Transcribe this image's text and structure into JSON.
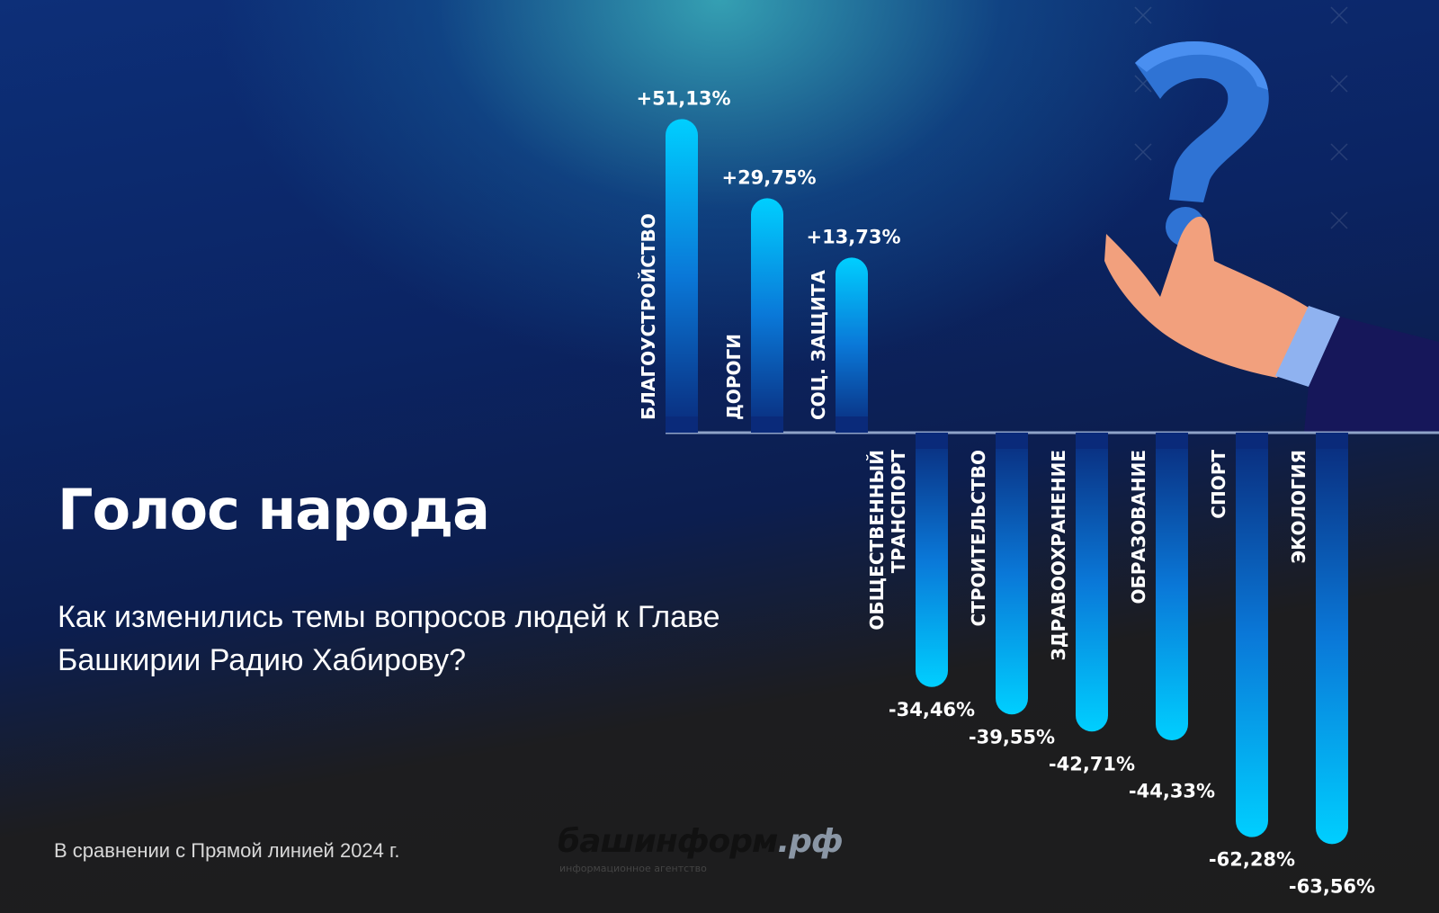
{
  "header": {
    "title": "Голос народа",
    "subtitle": "Как изменились темы вопросов людей к Главе Башкирии Радию Хабирову?",
    "note": "В сравнении с Прямой линией 2024 г."
  },
  "watermark": {
    "name": "башинформ",
    "domain": ".рф",
    "tagline": "информационное агентство"
  },
  "colors": {
    "bar_bright": "#00c8ff",
    "bar_dark": "#0a2a7a",
    "axis": "#8fa3c8",
    "accent_question": "#2f73d4"
  },
  "chart_data": {
    "type": "bar",
    "orientation": "vertical",
    "categories": [
      "БЛАГОУСТРОЙСТВО",
      "ДОРОГИ",
      "СОЦ. ЗАЩИТА",
      "ОБЩЕСТВЕННЫЙ ТРАНСПОРТ",
      "СТРОИТЕЛЬСТВО",
      "ЗДРАВООХРАНЕНИЕ",
      "ОБРАЗОВАНИЕ",
      "СПОРТ",
      "ЭКОЛОГИЯ"
    ],
    "values": [
      51.13,
      29.75,
      13.73,
      -34.46,
      -39.55,
      -42.71,
      -44.33,
      -62.28,
      -63.56
    ],
    "labels": [
      "+51,13%",
      "+29,75%",
      "+13,73%",
      "-34,46%",
      "-39,55%",
      "-42,71%",
      "-44,33%",
      "-62,28%",
      "-63,56%"
    ],
    "unit": "%",
    "grid": false,
    "legend": "none"
  }
}
